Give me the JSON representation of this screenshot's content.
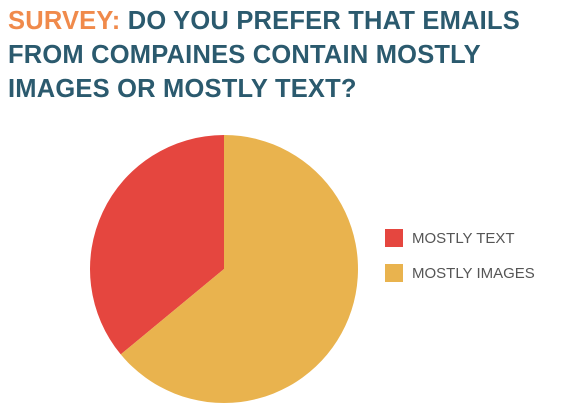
{
  "chart_data": {
    "type": "pie",
    "title_prefix": "SURVEY:",
    "title": "DO YOU PREFER THAT EMAILS FROM COMPAINES CONTAIN MOSTLY IMAGES OR MOSTLY TEXT?",
    "categories": [
      "MOSTLY TEXT",
      "MOSTLY IMAGES"
    ],
    "values": [
      36,
      64
    ],
    "colors": [
      "#e5463f",
      "#e9b34e"
    ],
    "legend": "right"
  }
}
